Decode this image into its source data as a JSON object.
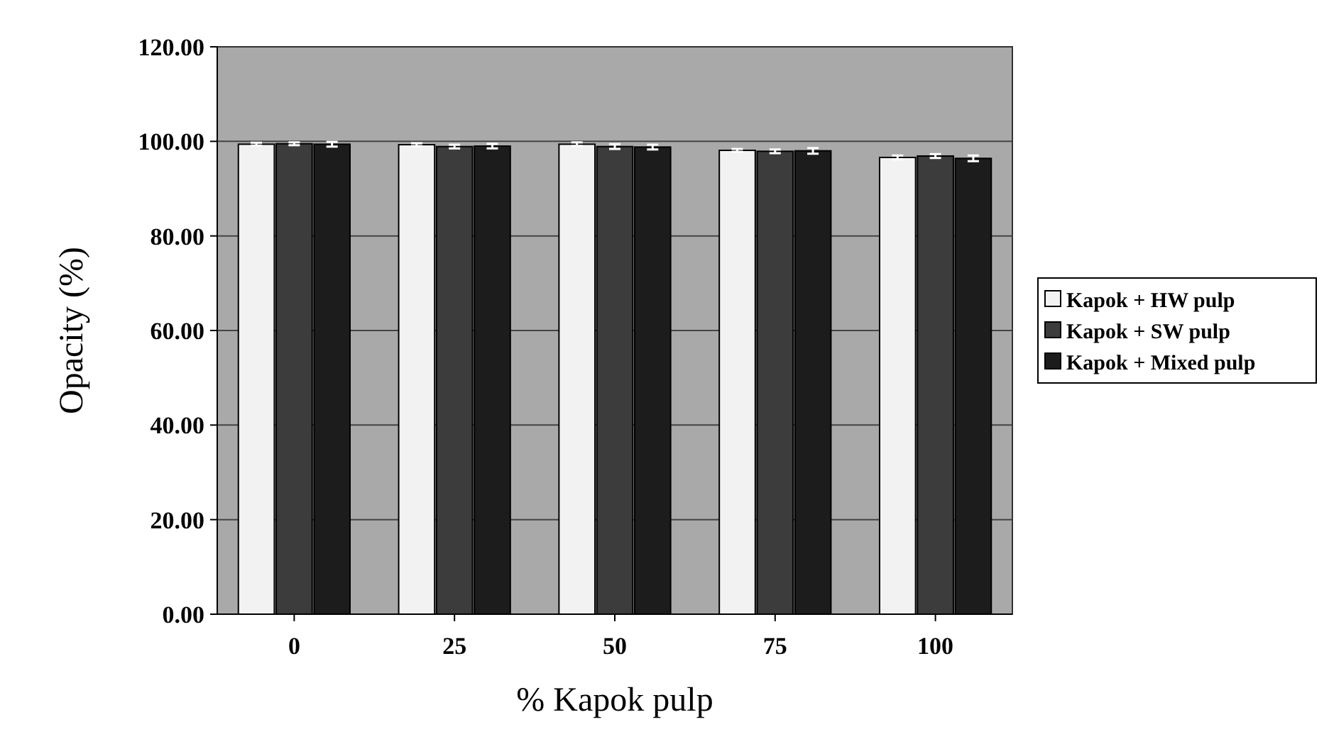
{
  "chart_data": {
    "type": "bar",
    "xlabel": "% Kapok pulp",
    "ylabel": "Opacity (%)",
    "categories": [
      "0",
      "25",
      "50",
      "75",
      "100"
    ],
    "series": [
      {
        "name": "Kapok + HW pulp",
        "color": "#f2f2f2",
        "values": [
          99.4,
          99.3,
          99.4,
          98.1,
          96.6
        ],
        "errors": [
          0.3,
          0.3,
          0.4,
          0.3,
          0.4
        ]
      },
      {
        "name": "Kapok + SW pulp",
        "color": "#3c3c3c",
        "values": [
          99.5,
          98.9,
          98.9,
          97.9,
          96.9
        ],
        "errors": [
          0.3,
          0.4,
          0.5,
          0.4,
          0.4
        ]
      },
      {
        "name": "Kapok + Mixed pulp",
        "color": "#1c1c1c",
        "values": [
          99.4,
          99.0,
          98.8,
          98.0,
          96.4
        ],
        "errors": [
          0.5,
          0.5,
          0.5,
          0.6,
          0.6
        ]
      }
    ],
    "ylim": [
      0,
      120
    ],
    "yticks": [
      {
        "value": 0,
        "label": "0.00"
      },
      {
        "value": 20,
        "label": "20.00"
      },
      {
        "value": 40,
        "label": "40.00"
      },
      {
        "value": 60,
        "label": "60.00"
      },
      {
        "value": 80,
        "label": "80.00"
      },
      {
        "value": 100,
        "label": "100.00"
      },
      {
        "value": 120,
        "label": "120.00"
      }
    ],
    "grid": "y",
    "legend": "right"
  }
}
